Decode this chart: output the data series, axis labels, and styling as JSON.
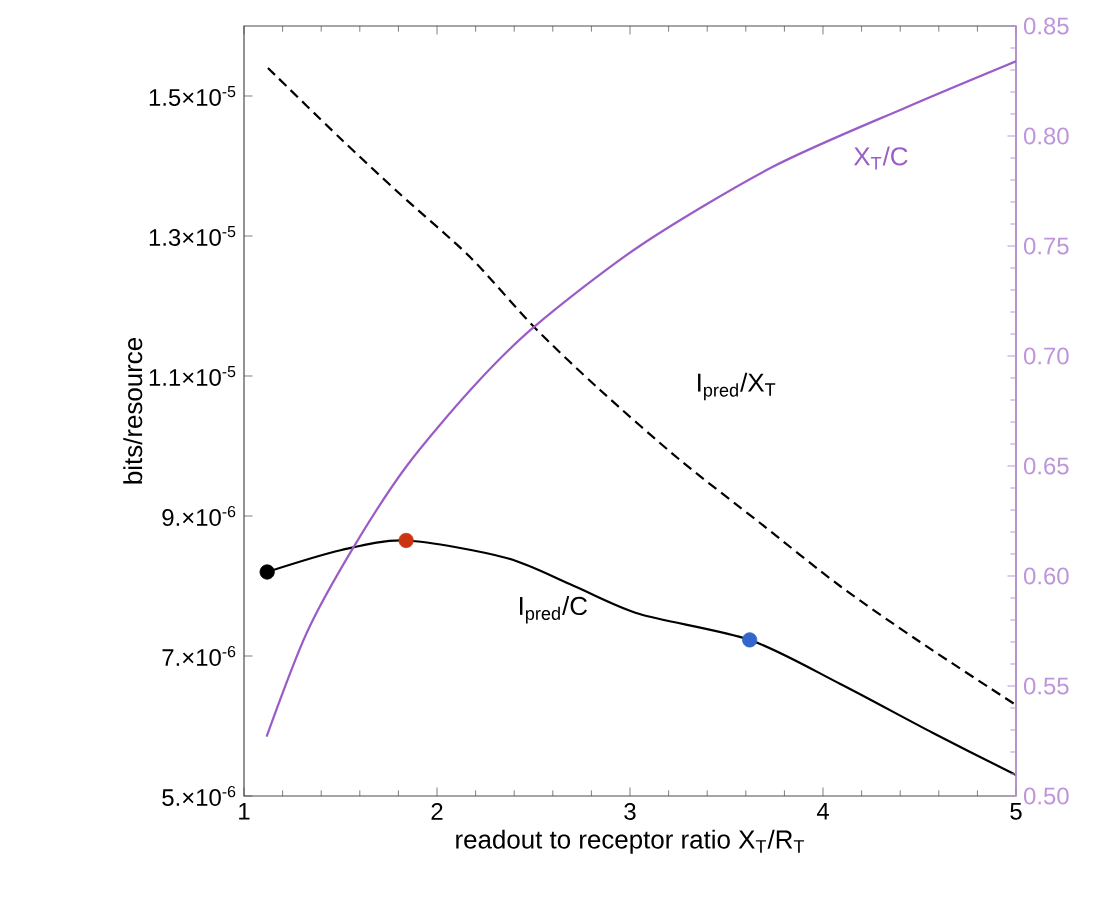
{
  "chart_data": {
    "type": "line",
    "xlabel": "readout to receptor ratio X$_{T}$/R$_{T}$",
    "ylabel": "bits/resource",
    "xlim": [
      1,
      5
    ],
    "xticks": [
      1,
      2,
      3,
      4,
      5
    ],
    "ylim": [
      5e-06,
      1.6e-05
    ],
    "yticks": [
      {
        "value": 5e-06,
        "label": "5.×10$^{-6}$"
      },
      {
        "value": 7e-06,
        "label": "7.×10$^{-6}$"
      },
      {
        "value": 9e-06,
        "label": "9.×10$^{-6}$"
      },
      {
        "value": 1.1e-05,
        "label": "1.1×10$^{-5}$"
      },
      {
        "value": 1.3e-05,
        "label": "1.3×10$^{-5}$"
      },
      {
        "value": 1.5e-05,
        "label": "1.5×10$^{-5}$"
      }
    ],
    "y2lim": [
      0.5,
      0.85
    ],
    "y2ticks": [
      {
        "value": 0.5,
        "label": "0.50"
      },
      {
        "value": 0.55,
        "label": "0.55"
      },
      {
        "value": 0.6,
        "label": "0.60"
      },
      {
        "value": 0.65,
        "label": "0.65"
      },
      {
        "value": 0.7,
        "label": "0.70"
      },
      {
        "value": 0.75,
        "label": "0.75"
      },
      {
        "value": 0.8,
        "label": "0.80"
      },
      {
        "value": 0.85,
        "label": "0.85"
      }
    ],
    "grid": false,
    "legend": false,
    "series": [
      {
        "name": "X$_{T}$/C",
        "color": "#9a5cc6",
        "axis": "y2",
        "line_style": "solid",
        "x": [
          1.117,
          1.324,
          1.567,
          1.843,
          2.188,
          2.5,
          3.05,
          3.74,
          4.43,
          5.0
        ],
        "values": [
          0.527,
          0.574,
          0.613,
          0.65,
          0.686,
          0.713,
          0.75,
          0.786,
          0.813,
          0.834
        ]
      },
      {
        "name": "I$_{pred}$/X$_{T}$",
        "color": "#000000",
        "line_style": "dashed",
        "x": [
          1.124,
          1.497,
          1.808,
          2.171,
          2.503,
          2.845,
          3.259,
          3.674,
          4.088,
          4.503,
          5.0
        ],
        "values": [
          1.54e-05,
          1.44e-05,
          1.36e-05,
          1.27e-05,
          1.17e-05,
          1.08e-05,
          9.8e-06,
          8.9e-06,
          8e-06,
          7.2e-06,
          6.3e-06
        ]
      },
      {
        "name": "I$_{pred}$/C",
        "color": "#000000",
        "line_style": "solid",
        "x": [
          1.12,
          1.5,
          1.84,
          2.36,
          2.71,
          3.05,
          3.62,
          4.09,
          4.57,
          5.0
        ],
        "values": [
          8.2e-06,
          8.51e-06,
          8.65e-06,
          8.4e-06,
          8e-06,
          7.6e-06,
          7.23e-06,
          6.6e-06,
          5.9e-06,
          5.3e-06
        ]
      },
      {
        "type": "scatter",
        "marker": "circle",
        "colors": [
          "#000000",
          "#cc3311",
          "#3366cc"
        ],
        "x": [
          1.12,
          1.84,
          3.62
        ],
        "values": [
          8.2e-06,
          8.65e-06,
          7.23e-06
        ]
      }
    ]
  }
}
